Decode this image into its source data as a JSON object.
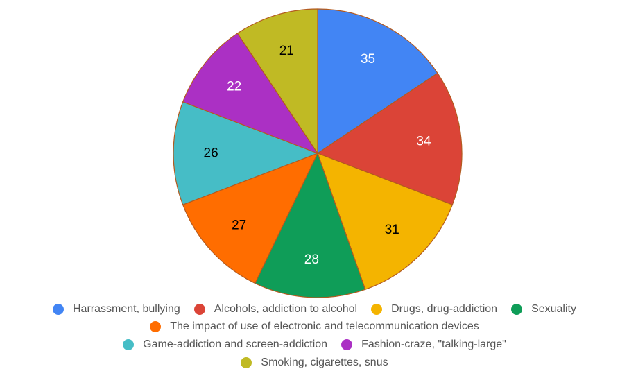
{
  "chart_data": {
    "type": "pie",
    "title": "",
    "slices": [
      {
        "label": "Harrassment, bullying",
        "value": 35,
        "color": "#4285F4",
        "value_label_color": "#ffffff"
      },
      {
        "label": "Alcohols, addiction to alcohol",
        "value": 34,
        "color": "#DB4437",
        "value_label_color": "#ffffff"
      },
      {
        "label": "Drugs, drug-addiction",
        "value": 31,
        "color": "#F4B400",
        "value_label_color": "#000000"
      },
      {
        "label": "Sexuality",
        "value": 28,
        "color": "#0F9D58",
        "value_label_color": "#ffffff"
      },
      {
        "label": "The impact of use of electronic and telecommunication devices",
        "value": 27,
        "color": "#FF6D00",
        "value_label_color": "#000000"
      },
      {
        "label": "Game-addiction and screen-addiction",
        "value": 26,
        "color": "#46BDC6",
        "value_label_color": "#000000"
      },
      {
        "label": "Fashion-craze, \"talking-large\"",
        "value": 22,
        "color": "#AB30C4",
        "value_label_color": "#ffffff"
      },
      {
        "label": "Smoking, cigarettes, snus",
        "value": 21,
        "color": "#C0BA24",
        "value_label_color": "#000000"
      }
    ],
    "slice_border_color": "#B35A1F",
    "legend_position": "bottom",
    "legend_rows": [
      [
        0,
        1,
        2,
        3
      ],
      [
        4
      ],
      [
        5,
        6
      ],
      [
        7
      ]
    ]
  }
}
